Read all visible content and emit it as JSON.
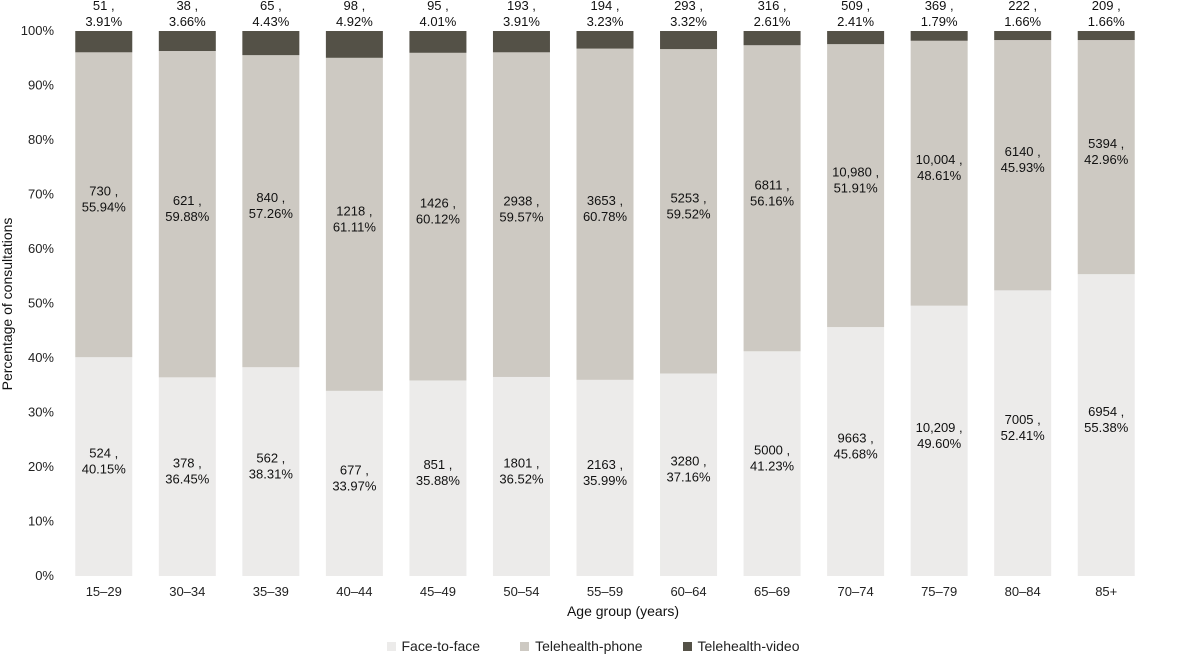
{
  "chart_data": {
    "type": "bar",
    "stacked": true,
    "percent": true,
    "xlabel": "Age group (years)",
    "ylabel": "Percentage of consultations",
    "ylim": [
      0,
      100
    ],
    "yticks": [
      "0%",
      "10%",
      "20%",
      "30%",
      "40%",
      "50%",
      "60%",
      "70%",
      "80%",
      "90%",
      "100%"
    ],
    "categories": [
      "15–29",
      "30–34",
      "35–39",
      "40–44",
      "45–49",
      "50–54",
      "55–59",
      "60–64",
      "65–69",
      "70–74",
      "75–79",
      "80–84",
      "85+"
    ],
    "series": [
      {
        "name": "Face-to-face",
        "color": "#ecebea",
        "values": [
          40.15,
          36.45,
          38.31,
          33.97,
          35.88,
          36.52,
          35.99,
          37.16,
          41.23,
          45.68,
          49.6,
          52.41,
          55.38
        ],
        "labels": [
          [
            "524 ,",
            "40.15%"
          ],
          [
            "378 ,",
            "36.45%"
          ],
          [
            "562 ,",
            "38.31%"
          ],
          [
            "677 ,",
            "33.97%"
          ],
          [
            "851 ,",
            "35.88%"
          ],
          [
            "1801 ,",
            "36.52%"
          ],
          [
            "2163 ,",
            "35.99%"
          ],
          [
            "3280 ,",
            "37.16%"
          ],
          [
            "5000 ,",
            "41.23%"
          ],
          [
            "9663 ,",
            "45.68%"
          ],
          [
            "10,209 ,",
            "49.60%"
          ],
          [
            "7005 ,",
            "52.41%"
          ],
          [
            "6954 ,",
            "55.38%"
          ]
        ]
      },
      {
        "name": "Telehealth-phone",
        "color": "#cdc9c2",
        "values": [
          55.94,
          59.88,
          57.26,
          61.11,
          60.12,
          59.57,
          60.78,
          59.52,
          56.16,
          51.91,
          48.61,
          45.93,
          42.96
        ],
        "labels": [
          [
            "730 ,",
            "55.94%"
          ],
          [
            "621 ,",
            "59.88%"
          ],
          [
            "840 ,",
            "57.26%"
          ],
          [
            "1218 ,",
            "61.11%"
          ],
          [
            "1426 ,",
            "60.12%"
          ],
          [
            "2938 ,",
            "59.57%"
          ],
          [
            "3653 ,",
            "60.78%"
          ],
          [
            "5253 ,",
            "59.52%"
          ],
          [
            "6811 ,",
            "56.16%"
          ],
          [
            "10,980 ,",
            "51.91%"
          ],
          [
            "10,004 ,",
            "48.61%"
          ],
          [
            "6140 ,",
            "45.93%"
          ],
          [
            "5394 ,",
            "42.96%"
          ]
        ]
      },
      {
        "name": "Telehealth-video",
        "color": "#545147",
        "values": [
          3.91,
          3.66,
          4.43,
          4.92,
          4.01,
          3.91,
          3.23,
          3.32,
          2.61,
          2.41,
          1.79,
          1.66,
          1.66
        ],
        "labels": [
          [
            "51 ,",
            "3.91%"
          ],
          [
            "38 ,",
            "3.66%"
          ],
          [
            "65 ,",
            "4.43%"
          ],
          [
            "98 ,",
            "4.92%"
          ],
          [
            "95 ,",
            "4.01%"
          ],
          [
            "193 ,",
            "3.91%"
          ],
          [
            "194 ,",
            "3.23%"
          ],
          [
            "293 ,",
            "3.32%"
          ],
          [
            "316 ,",
            "2.61%"
          ],
          [
            "509 ,",
            "2.41%"
          ],
          [
            "369 ,",
            "1.79%"
          ],
          [
            "222 ,",
            "1.66%"
          ],
          [
            "209 ,",
            "1.66%"
          ]
        ]
      }
    ],
    "legend": [
      "Face-to-face",
      "Telehealth-phone",
      "Telehealth-video"
    ],
    "legend_position": "bottom-center"
  }
}
